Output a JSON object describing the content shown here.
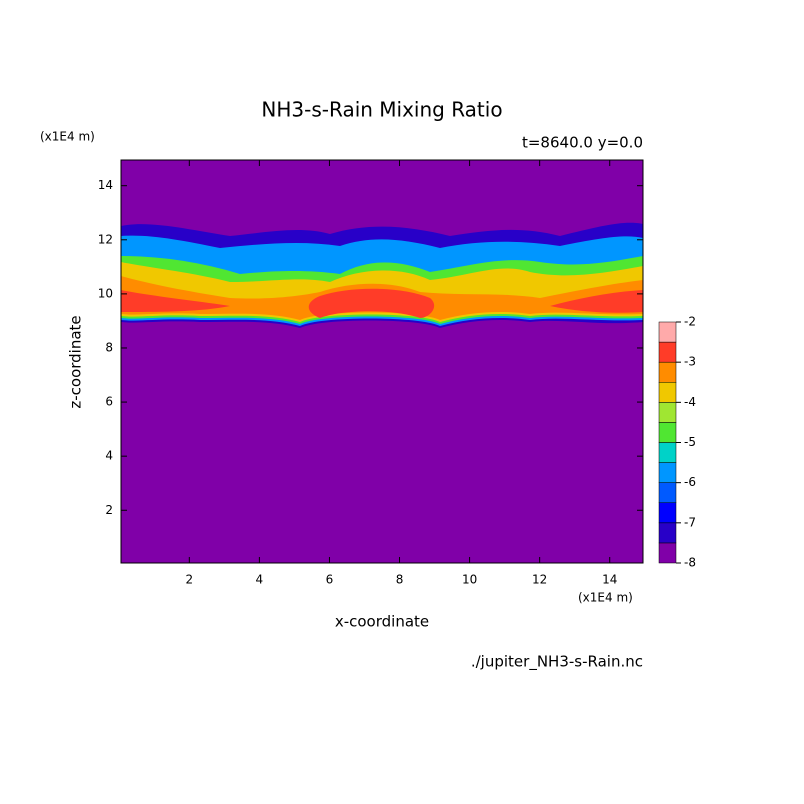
{
  "chart_data": {
    "type": "contour",
    "title": "NH3-s-Rain Mixing Ratio",
    "subtitle": "t=8640.0 y=0.0",
    "x_label": "x-coordinate",
    "y_label": "z-coordinate",
    "x_unit": "(x1E4 m)",
    "y_unit": "(x1E4 m)",
    "source": "./jupiter_NH3-s-Rain.nc",
    "xlim": [
      0.05,
      14.95
    ],
    "ylim": [
      0.05,
      14.95
    ],
    "xticks": [
      2,
      4,
      6,
      8,
      10,
      12,
      14
    ],
    "yticks": [
      2,
      4,
      6,
      8,
      10,
      12,
      14
    ],
    "levels": [
      -8,
      -7.5,
      -7,
      -6.5,
      -6,
      -5.5,
      -5,
      -4.5,
      -4,
      -3.5,
      -3,
      -2.5,
      -2
    ],
    "colors": [
      "#8000a8",
      "#2800c8",
      "#0000ff",
      "#005aff",
      "#0096ff",
      "#00d2c8",
      "#50e632",
      "#a0e632",
      "#f0c800",
      "#ff8c00",
      "#ff3c28",
      "#ffaaaa"
    ],
    "colorbar_ticks": [
      -8,
      -7,
      -6,
      -5,
      -4,
      -3,
      -2
    ]
  }
}
